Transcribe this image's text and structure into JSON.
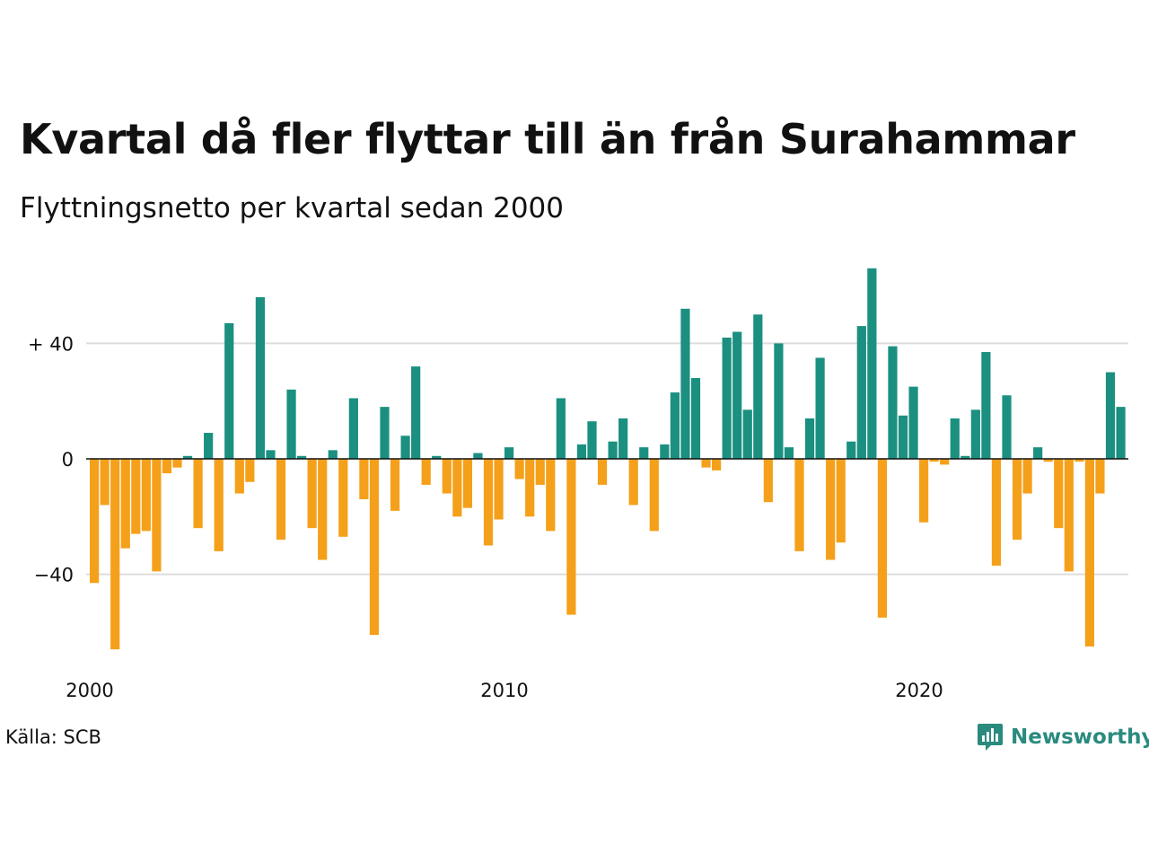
{
  "title": "Kvartal då fler flyttar till än från Surahammar",
  "subtitle": "Flyttningsnetto per kvartal sedan 2000",
  "source": "Källa: SCB",
  "brand": "Newsworthy",
  "colors": {
    "positive": "#1b9080",
    "negative": "#f5a01a",
    "grid": "#dddddd",
    "brand": "#2a8a7e"
  },
  "chart_data": {
    "type": "bar",
    "ylim": [
      -66,
      66
    ],
    "y_ticks": [
      {
        "value": 40,
        "label": "+ 40"
      },
      {
        "value": 0,
        "label": "0"
      },
      {
        "value": -40,
        "label": "−40"
      }
    ],
    "x_ticks": [
      {
        "year": 2000,
        "label": "2000"
      },
      {
        "year": 2010,
        "label": "2010"
      },
      {
        "year": 2020,
        "label": "2020"
      }
    ],
    "x_start_year": 2000,
    "quarters_per_year": 4,
    "values": [
      -43,
      -16,
      -66,
      -31,
      -26,
      -25,
      -39,
      -5,
      -3,
      1,
      -24,
      9,
      -32,
      47,
      -12,
      -8,
      56,
      3,
      -28,
      24,
      1,
      -24,
      -35,
      3,
      -27,
      21,
      -14,
      -61,
      18,
      -18,
      8,
      32,
      -9,
      1,
      -12,
      -20,
      -17,
      2,
      -30,
      -21,
      4,
      -7,
      -20,
      -9,
      -25,
      21,
      -54,
      5,
      13,
      -9,
      6,
      14,
      -16,
      4,
      -25,
      5,
      23,
      52,
      28,
      -3,
      -4,
      42,
      44,
      17,
      50,
      -15,
      40,
      4,
      -32,
      14,
      35,
      -35,
      -29,
      6,
      46,
      66,
      -55,
      39,
      15,
      25,
      -22,
      -1,
      -2,
      14,
      1,
      17,
      37,
      -37,
      22,
      -28,
      -12,
      4,
      -1,
      -24,
      -39,
      -1,
      -65,
      -12,
      30,
      18
    ]
  }
}
